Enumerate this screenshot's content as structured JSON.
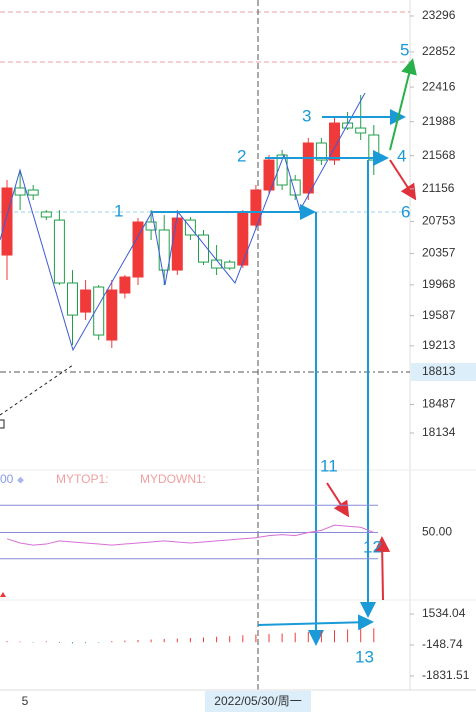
{
  "chart_data": {
    "type": "candlestick",
    "candles": {
      "open": [
        20337,
        21167,
        21142,
        20870,
        20770,
        19991,
        19631,
        19941,
        19285,
        19867,
        20065,
        20746,
        20647,
        20151,
        20770,
        20585,
        20275,
        20250,
        20213,
        20708,
        21142,
        21575,
        21266,
        21105,
        21724,
        21513,
        21971,
        21909,
        21823
      ],
      "high": [
        21266,
        21389,
        21204,
        20894,
        20894,
        20151,
        20028,
        19966,
        20028,
        20090,
        20795,
        20894,
        20832,
        20894,
        20808,
        20647,
        20461,
        20275,
        20894,
        21204,
        21575,
        21637,
        21328,
        21786,
        21786,
        22033,
        22107,
        22318,
        21947
      ],
      "low": [
        20028,
        20894,
        21018,
        20770,
        19966,
        19223,
        19532,
        19285,
        19186,
        19800,
        19966,
        20523,
        19966,
        20090,
        20523,
        20213,
        20090,
        20151,
        20176,
        20647,
        21080,
        21142,
        21018,
        21018,
        21451,
        21451,
        21885,
        21761,
        21328
      ],
      "close": [
        21167,
        21080,
        21080,
        20808,
        19991,
        19594,
        19904,
        19347,
        19904,
        20065,
        20746,
        20647,
        20151,
        20795,
        20585,
        20250,
        20176,
        20176,
        20870,
        21142,
        21513,
        21204,
        21080,
        21724,
        21513,
        21971,
        21909,
        21848,
        21513
      ]
    },
    "up_color": "#f03a3a",
    "down_color": "#1f9e4a",
    "ylim": [
      17800,
      23494
    ],
    "yticks": [
      23296,
      22852,
      22416,
      21988,
      21568,
      21156,
      20753,
      20357,
      19968,
      19587,
      19213,
      18487,
      18134
    ],
    "crosshair_price": 18813,
    "x_labels": [
      "5",
      "2022/05/30/周一"
    ],
    "annotations": [
      "1",
      "2",
      "3",
      "4",
      "5",
      "6",
      "11",
      "12",
      "13"
    ],
    "indicator": {
      "labels": [
        "00",
        "MYTOP1:",
        "MYDOWN1:"
      ],
      "color": "#d86fd8",
      "values": [
        44,
        40,
        38,
        39,
        42,
        41,
        40,
        39,
        38,
        39,
        40,
        41,
        42,
        41,
        40,
        41,
        42,
        43,
        44,
        45,
        47,
        48,
        47,
        50,
        52,
        57,
        56,
        55,
        50
      ],
      "levels": [
        76,
        25
      ],
      "ylim": [
        0,
        100
      ],
      "yticks": [
        {
          "value": 50,
          "label": "50.00"
        }
      ]
    },
    "macd": {
      "values": [
        60,
        40,
        -30,
        50,
        -40,
        -60,
        -50,
        -30,
        60,
        90,
        120,
        150,
        180,
        200,
        230,
        260,
        300,
        330,
        380,
        420,
        450,
        480,
        520,
        560,
        600,
        650,
        700,
        720,
        760
      ],
      "ylim": [
        -2600,
        2300
      ],
      "yticks": [
        {
          "value": 1534.04,
          "label": "1534.04"
        },
        {
          "value": -148.74,
          "label": "-148.74"
        },
        {
          "value": -1831.51,
          "label": "-1831.51"
        }
      ]
    }
  }
}
